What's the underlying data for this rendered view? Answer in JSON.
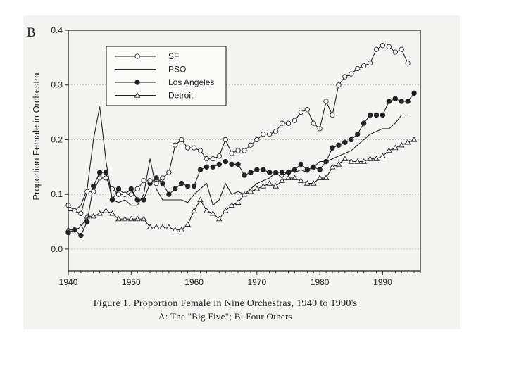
{
  "panel_label": "B",
  "caption": {
    "line1": "Figure 1. Proportion Female in Nine Orchestras, 1940 to 1990's",
    "line2": "A: The \"Big Five\"; B: Four Others"
  },
  "chart_data": {
    "type": "line",
    "title": "",
    "xlabel": "",
    "ylabel": "Proportion Female in Orchestra",
    "xlim": [
      1940,
      1996
    ],
    "ylim": [
      -0.04,
      0.4
    ],
    "x_ticks": [
      1940,
      1950,
      1960,
      1970,
      1980,
      1990
    ],
    "y_ticks": [
      0.0,
      0.1,
      0.2,
      0.3,
      0.4
    ],
    "y_tick_labels": [
      "0.0",
      "0.1",
      "0.2",
      "0.3",
      "0.4"
    ],
    "grid": "horizontal dotted",
    "legend_position": "top-left",
    "series": [
      {
        "name": "SF",
        "marker": "open-circle",
        "x": [
          1940,
          1941,
          1942,
          1943,
          1944,
          1945,
          1946,
          1947,
          1948,
          1949,
          1950,
          1951,
          1952,
          1953,
          1954,
          1955,
          1956,
          1957,
          1958,
          1959,
          1960,
          1961,
          1962,
          1963,
          1964,
          1965,
          1966,
          1967,
          1968,
          1969,
          1970,
          1971,
          1972,
          1973,
          1974,
          1975,
          1976,
          1977,
          1978,
          1979,
          1980,
          1981,
          1982,
          1983,
          1984,
          1985,
          1986,
          1987,
          1988,
          1989,
          1990,
          1991,
          1992,
          1993,
          1994
        ],
        "values": [
          0.08,
          0.07,
          0.065,
          0.105,
          0.105,
          0.13,
          0.13,
          0.11,
          0.1,
          0.1,
          0.1,
          0.11,
          0.125,
          0.125,
          0.12,
          0.13,
          0.14,
          0.19,
          0.2,
          0.185,
          0.185,
          0.18,
          0.165,
          0.165,
          0.17,
          0.2,
          0.175,
          0.18,
          0.18,
          0.19,
          0.2,
          0.21,
          0.21,
          0.215,
          0.23,
          0.23,
          0.235,
          0.25,
          0.255,
          0.23,
          0.22,
          0.27,
          0.245,
          0.3,
          0.315,
          0.32,
          0.33,
          0.335,
          0.34,
          0.365,
          0.372,
          0.37,
          0.36,
          0.365,
          0.34
        ]
      },
      {
        "name": "PSO",
        "marker": "none",
        "x": [
          1940,
          1941,
          1942,
          1943,
          1944,
          1945,
          1946,
          1947,
          1948,
          1949,
          1950,
          1951,
          1952,
          1953,
          1954,
          1955,
          1956,
          1957,
          1958,
          1959,
          1960,
          1961,
          1962,
          1963,
          1964,
          1965,
          1966,
          1967,
          1968,
          1969,
          1970,
          1971,
          1972,
          1973,
          1974,
          1975,
          1976,
          1977,
          1978,
          1979,
          1980,
          1981,
          1982,
          1983,
          1984,
          1985,
          1986,
          1987,
          1988,
          1989,
          1990,
          1991,
          1992,
          1993,
          1994
        ],
        "values": [
          0.07,
          0.07,
          0.08,
          0.11,
          0.2,
          0.26,
          0.16,
          0.09,
          0.085,
          0.09,
          0.08,
          0.08,
          0.1,
          0.165,
          0.11,
          0.09,
          0.09,
          0.09,
          0.09,
          0.085,
          0.1,
          0.11,
          0.12,
          0.08,
          0.09,
          0.12,
          0.1,
          0.105,
          0.1,
          0.11,
          0.12,
          0.125,
          0.13,
          0.14,
          0.13,
          0.145,
          0.14,
          0.145,
          0.14,
          0.15,
          0.16,
          0.16,
          0.165,
          0.17,
          0.175,
          0.18,
          0.19,
          0.2,
          0.21,
          0.215,
          0.22,
          0.22,
          0.23,
          0.245,
          0.245
        ]
      },
      {
        "name": "Los Angeles",
        "marker": "filled-circle",
        "x": [
          1940,
          1941,
          1942,
          1943,
          1944,
          1945,
          1946,
          1947,
          1948,
          1949,
          1950,
          1951,
          1952,
          1953,
          1954,
          1955,
          1956,
          1957,
          1958,
          1959,
          1960,
          1961,
          1962,
          1963,
          1964,
          1965,
          1966,
          1967,
          1968,
          1969,
          1970,
          1971,
          1972,
          1973,
          1974,
          1975,
          1976,
          1977,
          1978,
          1979,
          1980,
          1981,
          1982,
          1983,
          1984,
          1985,
          1986,
          1987,
          1988,
          1989,
          1990,
          1991,
          1992,
          1993,
          1994,
          1995
        ],
        "values": [
          0.03,
          0.035,
          0.025,
          0.05,
          0.115,
          0.14,
          0.14,
          0.09,
          0.11,
          0.1,
          0.11,
          0.09,
          0.09,
          0.12,
          0.13,
          0.12,
          0.1,
          0.11,
          0.12,
          0.115,
          0.115,
          0.145,
          0.15,
          0.15,
          0.155,
          0.16,
          0.155,
          0.155,
          0.135,
          0.14,
          0.145,
          0.145,
          0.14,
          0.14,
          0.14,
          0.14,
          0.145,
          0.155,
          0.145,
          0.15,
          0.145,
          0.16,
          0.185,
          0.19,
          0.195,
          0.2,
          0.21,
          0.23,
          0.245,
          0.245,
          0.245,
          0.27,
          0.275,
          0.27,
          0.27,
          0.285
        ]
      },
      {
        "name": "Detroit",
        "marker": "open-triangle",
        "x": [
          1940,
          1941,
          1942,
          1943,
          1944,
          1945,
          1946,
          1947,
          1948,
          1949,
          1950,
          1951,
          1952,
          1953,
          1954,
          1955,
          1956,
          1957,
          1958,
          1959,
          1960,
          1961,
          1962,
          1963,
          1964,
          1965,
          1966,
          1967,
          1968,
          1969,
          1970,
          1971,
          1972,
          1973,
          1974,
          1975,
          1976,
          1977,
          1978,
          1979,
          1980,
          1981,
          1982,
          1983,
          1984,
          1985,
          1986,
          1987,
          1988,
          1989,
          1990,
          1991,
          1992,
          1993,
          1994,
          1995
        ],
        "values": [
          0.035,
          0.035,
          0.04,
          0.06,
          0.06,
          0.065,
          0.07,
          0.065,
          0.055,
          0.055,
          0.055,
          0.055,
          0.055,
          0.04,
          0.04,
          0.04,
          0.04,
          0.035,
          0.035,
          0.045,
          0.07,
          0.09,
          0.07,
          0.065,
          0.055,
          0.07,
          0.08,
          0.085,
          0.1,
          0.105,
          0.11,
          0.115,
          0.12,
          0.115,
          0.125,
          0.13,
          0.13,
          0.125,
          0.12,
          0.12,
          0.13,
          0.13,
          0.15,
          0.155,
          0.165,
          0.16,
          0.16,
          0.16,
          0.165,
          0.165,
          0.17,
          0.18,
          0.185,
          0.19,
          0.195,
          0.2
        ]
      }
    ]
  }
}
